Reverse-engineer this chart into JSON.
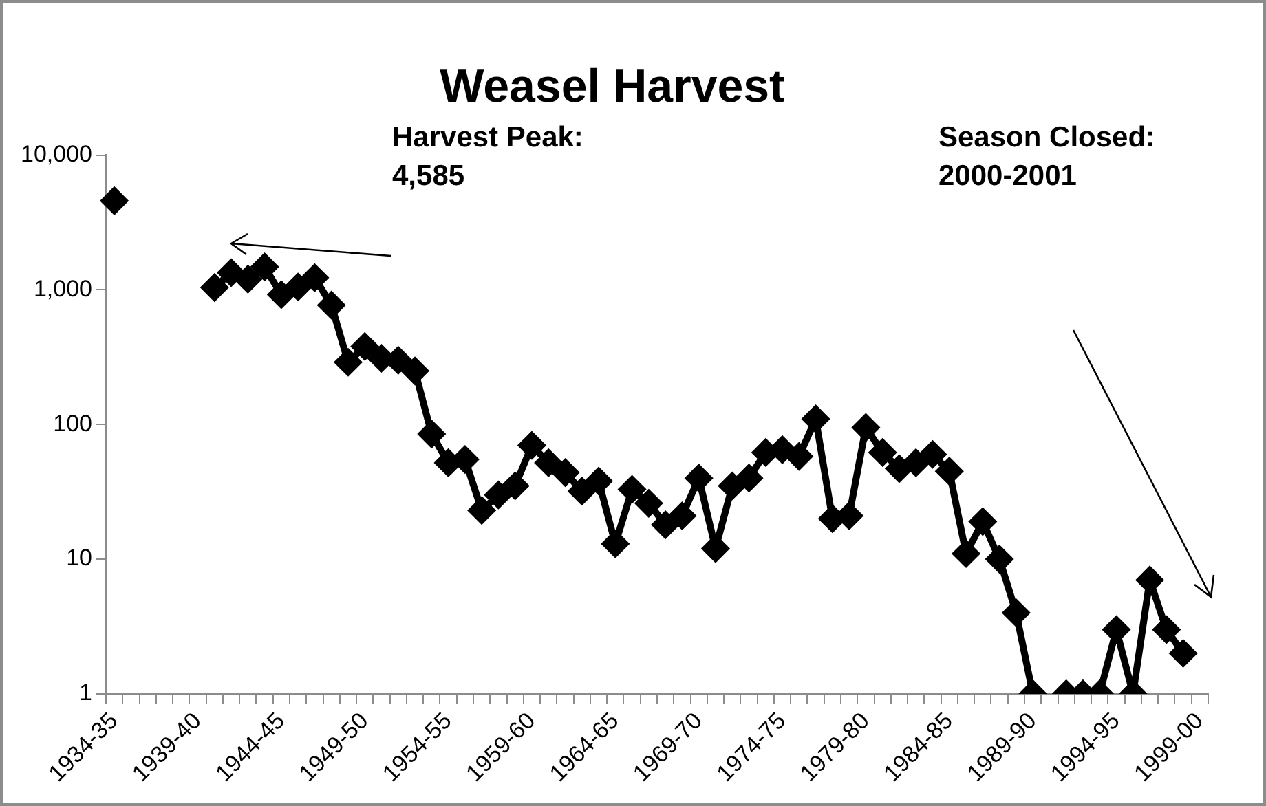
{
  "chart_data": {
    "type": "line",
    "title": "Weasel Harvest",
    "categories": [
      "1934-35",
      null,
      null,
      null,
      null,
      "1939-40",
      null,
      null,
      null,
      null,
      "1944-45",
      null,
      null,
      null,
      null,
      "1949-50",
      null,
      null,
      null,
      null,
      "1954-55",
      null,
      null,
      null,
      null,
      "1959-60",
      null,
      null,
      null,
      null,
      "1964-65",
      null,
      null,
      null,
      null,
      "1969-70",
      null,
      null,
      null,
      null,
      "1974-75",
      null,
      null,
      null,
      null,
      "1979-80",
      null,
      null,
      null,
      null,
      "1984-85",
      null,
      null,
      null,
      null,
      "1989-90",
      null,
      null,
      null,
      null,
      "1994-95",
      null,
      null,
      null,
      null,
      "1999-00"
    ],
    "series": [
      {
        "color": "#000000",
        "values": [
          4585,
          null,
          null,
          null,
          null,
          null,
          1040,
          1340,
          1200,
          1480,
          920,
          1050,
          1230,
          770,
          290,
          380,
          310,
          300,
          250,
          85,
          52,
          55,
          23,
          30,
          35,
          70,
          52,
          44,
          32,
          38,
          13,
          33,
          26,
          18,
          21,
          40,
          12,
          35,
          40,
          62,
          65,
          58,
          110,
          20,
          21,
          95,
          62,
          47,
          52,
          60,
          45,
          11,
          19,
          10,
          4,
          1,
          null,
          1,
          1,
          1,
          3,
          1,
          7,
          3,
          2,
          null
        ]
      }
    ],
    "log": "y",
    "ylim": [
      1,
      10000
    ],
    "yticks": [
      {
        "value": 1,
        "label": "1"
      },
      {
        "value": 10,
        "label": "10"
      },
      {
        "value": 100,
        "label": "100"
      },
      {
        "value": 1000,
        "label": "1,000"
      },
      {
        "value": 10000,
        "label": "10,000"
      }
    ],
    "grid": false,
    "legend": false,
    "marker": "diamond",
    "line_style": "solid",
    "annotations": [
      "Harvest Peak:\n4,585",
      "Season Closed:\n2000-2001"
    ]
  }
}
